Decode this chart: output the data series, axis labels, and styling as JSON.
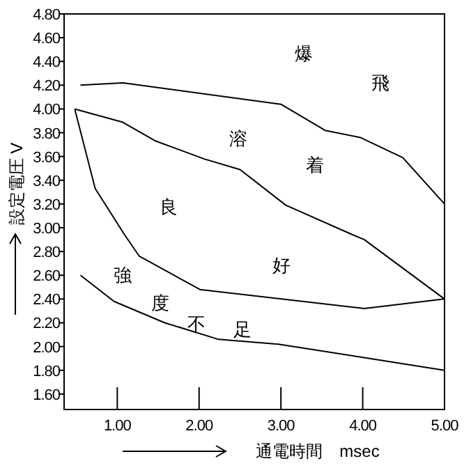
{
  "chart_data": {
    "type": "line",
    "xlabel": "通電時間　msec",
    "ylabel": "設定電圧 V",
    "xlim": [
      0.35,
      5
    ],
    "ylim": [
      1.47,
      4.8
    ],
    "xticks": [
      {
        "value": 1,
        "label": "1.00"
      },
      {
        "value": 2,
        "label": "2.00"
      },
      {
        "value": 3,
        "label": "3.00"
      },
      {
        "value": 4,
        "label": "4.00"
      },
      {
        "value": 5,
        "label": "5.00"
      }
    ],
    "yticks": [
      {
        "value": 1.6,
        "label": "1.60"
      },
      {
        "value": 1.8,
        "label": "1.80"
      },
      {
        "value": 2.0,
        "label": "2.00"
      },
      {
        "value": 2.2,
        "label": "2.20"
      },
      {
        "value": 2.4,
        "label": "2.40"
      },
      {
        "value": 2.6,
        "label": "2.60"
      },
      {
        "value": 2.8,
        "label": "2.80"
      },
      {
        "value": 3.0,
        "label": "3.00"
      },
      {
        "value": 3.2,
        "label": "3.20"
      },
      {
        "value": 3.4,
        "label": "3.40"
      },
      {
        "value": 3.6,
        "label": "3.60"
      },
      {
        "value": 3.8,
        "label": "3.80"
      },
      {
        "value": 4.0,
        "label": "4.00"
      },
      {
        "value": 4.2,
        "label": "4.20"
      },
      {
        "value": 4.4,
        "label": "4.40"
      },
      {
        "value": 4.6,
        "label": "4.60"
      },
      {
        "value": 4.8,
        "label": "4.80"
      }
    ],
    "grid": false,
    "marker": "none",
    "line_style": "solid",
    "series": [
      {
        "color": "#000000",
        "x": [
          0.55,
          1.07,
          3.0,
          3.54,
          3.97,
          4.49,
          5.0
        ],
        "values": [
          4.2,
          4.22,
          4.04,
          3.82,
          3.76,
          3.59,
          3.2
        ]
      },
      {
        "color": "#000000",
        "x": [
          0.48,
          1.06,
          1.47,
          2.06,
          2.5,
          3.06,
          3.88,
          4.02,
          5.0
        ],
        "values": [
          4.0,
          3.89,
          3.73,
          3.58,
          3.49,
          3.19,
          2.94,
          2.9,
          2.4
        ]
      },
      {
        "color": "#000000",
        "x": [
          0.48,
          0.73,
          1.09,
          1.27,
          2.01,
          4.02,
          5.0
        ],
        "values": [
          4.0,
          3.33,
          2.94,
          2.76,
          2.48,
          2.32,
          2.4
        ]
      },
      {
        "color": "#000000",
        "x": [
          0.55,
          0.96,
          1.58,
          2.24,
          2.97,
          3.99,
          5.0
        ],
        "values": [
          2.6,
          2.38,
          2.2,
          2.06,
          2.02,
          1.91,
          1.8
        ]
      }
    ],
    "annotations": [
      "爆",
      "飛",
      "溶",
      "着",
      "良",
      "好",
      "強",
      "度",
      "不",
      "足"
    ]
  }
}
